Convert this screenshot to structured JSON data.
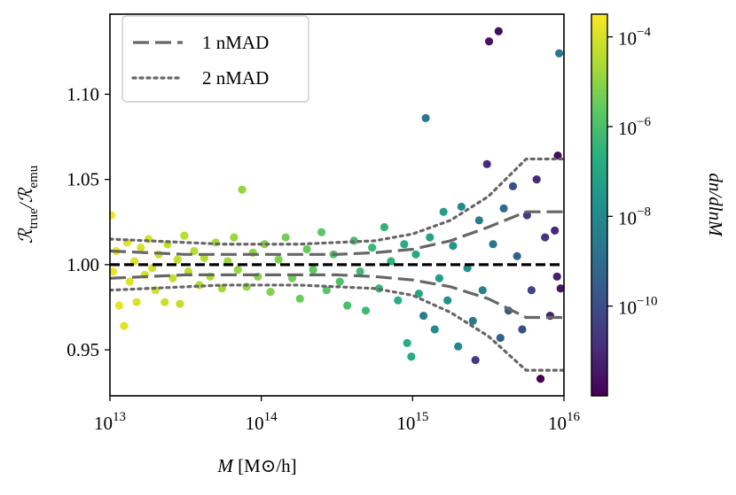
{
  "chart_data": {
    "type": "scatter",
    "xlabel": {
      "var": "M",
      "unit": "[M⊙/h]"
    },
    "ylabel": {
      "parts": [
        "ℛ",
        "true",
        "/ℛ",
        "emu"
      ]
    },
    "colorbar_label": "dn/dlnM",
    "xscale": "log",
    "xlim": [
      10000000000000.0,
      1e+16
    ],
    "xticks": [
      {
        "value": 10000000000000.0,
        "label": "10",
        "sup": "13"
      },
      {
        "value": 100000000000000.0,
        "label": "10",
        "sup": "14"
      },
      {
        "value": 1000000000000000.0,
        "label": "10",
        "sup": "15"
      },
      {
        "value": 1e+16,
        "label": "10",
        "sup": "16"
      }
    ],
    "ylim": [
      0.923,
      1.147
    ],
    "yticks": [
      0.95,
      {
        "value": 1.0,
        "label": "1.00"
      },
      1.05,
      {
        "value": 1.1,
        "label": "1.10"
      }
    ],
    "colormap": "viridis",
    "clim": [
      1e-12,
      0.00032
    ],
    "cticks": [
      {
        "value": 0.0001,
        "label": "10",
        "sup": "−4"
      },
      {
        "value": 1e-06,
        "label": "10",
        "sup": "−6"
      },
      {
        "value": 1e-08,
        "label": "10",
        "sup": "−8"
      },
      {
        "value": 1e-10,
        "label": "10",
        "sup": "−10"
      }
    ],
    "hline": {
      "value": 1.0,
      "color": "#000000"
    },
    "legend": "upper left",
    "bands": [
      {
        "name": "1 nMAD",
        "style": "dashed",
        "color": "#666666",
        "x": [
          10000000000000.0,
          17780000000000.0,
          31620000000000.0,
          56230000000000.0,
          100000000000000.0,
          177800000000000.0,
          316200000000000.0,
          562300000000000.0,
          1000000000000000.0,
          1778000000000000.0,
          3162000000000000.0,
          5623000000000000.0,
          1e+16
        ],
        "upper": [
          1.008,
          1.007,
          1.006,
          1.006,
          1.006,
          1.006,
          1.006,
          1.007,
          1.009,
          1.014,
          1.022,
          1.031,
          1.031
        ],
        "lower": [
          0.992,
          0.993,
          0.994,
          0.994,
          0.994,
          0.994,
          0.994,
          0.993,
          0.991,
          0.987,
          0.98,
          0.969,
          0.969
        ]
      },
      {
        "name": "2 nMAD",
        "style": "dotted",
        "color": "#666666",
        "x": [
          10000000000000.0,
          17780000000000.0,
          31620000000000.0,
          56230000000000.0,
          100000000000000.0,
          177800000000000.0,
          316200000000000.0,
          562300000000000.0,
          1000000000000000.0,
          1778000000000000.0,
          3162000000000000.0,
          5623000000000000.0,
          1e+16
        ],
        "upper": [
          1.015,
          1.014,
          1.013,
          1.012,
          1.012,
          1.012,
          1.013,
          1.014,
          1.018,
          1.026,
          1.04,
          1.062,
          1.062
        ],
        "lower": [
          0.985,
          0.986,
          0.987,
          0.988,
          0.988,
          0.988,
          0.987,
          0.986,
          0.982,
          0.972,
          0.958,
          0.938,
          0.938
        ]
      }
    ],
    "points": {
      "x": [
        10200000000000.0,
        10500000000000.0,
        11000000000000.0,
        11500000000000.0,
        12400000000000.0,
        13000000000000.0,
        13500000000000.0,
        14500000000000.0,
        15000000000000.0,
        16000000000000.0,
        17000000000000.0,
        18000000000000.0,
        19000000000000.0,
        20000000000000.0,
        21000000000000.0,
        23000000000000.0,
        24000000000000.0,
        26000000000000.0,
        28000000000000.0,
        29000000000000.0,
        31000000000000.0,
        33000000000000.0,
        36000000000000.0,
        39000000000000.0,
        42000000000000.0,
        46000000000000.0,
        50000000000000.0,
        55000000000000.0,
        60000000000000.0,
        66000000000000.0,
        70000000000000.0,
        74700000000000.0,
        80000000000000.0,
        88000000000000.0,
        95000000000000.0,
        105000000000000.0,
        115000000000000.0,
        130000000000000.0,
        145000000000000.0,
        160000000000000.0,
        180000000000000.0,
        200000000000000.0,
        220000000000000.0,
        250000000000000.0,
        270000000000000.0,
        300000000000000.0,
        330000000000000.0,
        370000000000000.0,
        410000000000000.0,
        450000000000000.0,
        490000000000000.0,
        540000000000000.0,
        600000000000000.0,
        650000000000000.0,
        720000000000000.0,
        800000000000000.0,
        880000000000000.0,
        920000000000000.0,
        980000000000000.0,
        1050000000000000.0,
        1100000000000000.0,
        1180000000000000.0,
        1220000000000000.0,
        1300000000000000.0,
        1400000000000000.0,
        1500000000000000.0,
        1600000000000000.0,
        1700000000000000.0,
        1850000000000000.0,
        2000000000000000.0,
        2100000000000000.0,
        2300000000000000.0,
        2500000000000000.0,
        2600000000000000.0,
        2750000000000000.0,
        2900000000000000.0,
        3100000000000000.0,
        3200000000000000.0,
        3400000000000000.0,
        3700000000000000.0,
        3800000000000000.0,
        4000000000000000.0,
        4300000000000000.0,
        4600000000000000.0,
        4900000000000000.0,
        5300000000000000.0,
        5700000000000000.0,
        6100000000000000.0,
        6600000000000000.0,
        7000000000000000.0,
        7500000000000000.0,
        8100000000000000.0,
        8700000000000000.0,
        9000000000000000.0,
        9100000000000000.0,
        9300000000000000.0,
        9500000000000000.0
      ],
      "y": [
        1.029,
        0.996,
        1.008,
        0.976,
        0.964,
        1.013,
        0.99,
        1.002,
        0.978,
        1.01,
        0.994,
        1.015,
        0.998,
        0.985,
        1.006,
        0.978,
        1.012,
        0.992,
        1.003,
        0.977,
        1.017,
        0.996,
        1.008,
        0.988,
        1.004,
        0.993,
        1.013,
        0.986,
        1.002,
        1.016,
        0.997,
        1.044,
        0.987,
        1.007,
        0.993,
        1.012,
        0.984,
        1.003,
        1.016,
        0.992,
        0.98,
        1.009,
        0.997,
        1.019,
        0.985,
        1.006,
        0.99,
        0.976,
        1.014,
        0.996,
        0.973,
        1.01,
        0.986,
        1.022,
        1.002,
        0.979,
        1.012,
        0.954,
        0.946,
        1.006,
        0.983,
        0.97,
        1.086,
        1.016,
        0.962,
        0.992,
        1.031,
        0.979,
        1.011,
        0.952,
        1.034,
        0.998,
        0.967,
        0.944,
        1.026,
        0.985,
        1.059,
        1.131,
        1.012,
        1.137,
        0.957,
        1.033,
        0.973,
        1.046,
        1.005,
        0.962,
        1.029,
        0.985,
        1.05,
        0.933,
        1.016,
        0.97,
        1.02,
        0.993,
        1.064,
        1.124,
        0.986
      ],
      "c": [
        0.0002,
        0.00018,
        0.00016,
        0.00015,
        0.00014,
        0.00013,
        0.00012,
        0.00011,
        0.00011,
        0.0001,
        9e-05,
        8e-05,
        8e-05,
        7e-05,
        7e-05,
        6e-05,
        6e-05,
        5e-05,
        5e-05,
        5e-05,
        4e-05,
        4e-05,
        3.5e-05,
        3e-05,
        3e-05,
        2.5e-05,
        2.2e-05,
        2e-05,
        1.8e-05,
        1.5e-05,
        1.4e-05,
        1.3e-05,
        1.2e-05,
        1e-05,
        9e-06,
        8e-06,
        7e-06,
        6e-06,
        5e-06,
        4e-06,
        3.5e-06,
        3e-06,
        2.5e-06,
        2e-06,
        1.8e-06,
        1.5e-06,
        1.2e-06,
        1e-06,
        8e-07,
        7e-07,
        6e-07,
        5e-07,
        4e-07,
        3.5e-07,
        3e-07,
        2.5e-07,
        2e-07,
        2e-07,
        1.8e-07,
        1.5e-07,
        1.2e-07,
        5e-09,
        3e-09,
        8e-08,
        1e-08,
        6e-08,
        5e-08,
        2e-08,
        3e-08,
        8e-09,
        1e-08,
        2e-08,
        3e-09,
        3e-11,
        4e-09,
        6e-09,
        1e-11,
        3e-12,
        2e-09,
        2e-12,
        5e-10,
        1e-09,
        3e-10,
        1e-10,
        5e-10,
        1e-10,
        3e-11,
        5e-11,
        1e-11,
        1e-12,
        2e-11,
        5e-12,
        1e-11,
        5e-12,
        2e-12,
        2e-09,
        3e-12
      ]
    }
  }
}
